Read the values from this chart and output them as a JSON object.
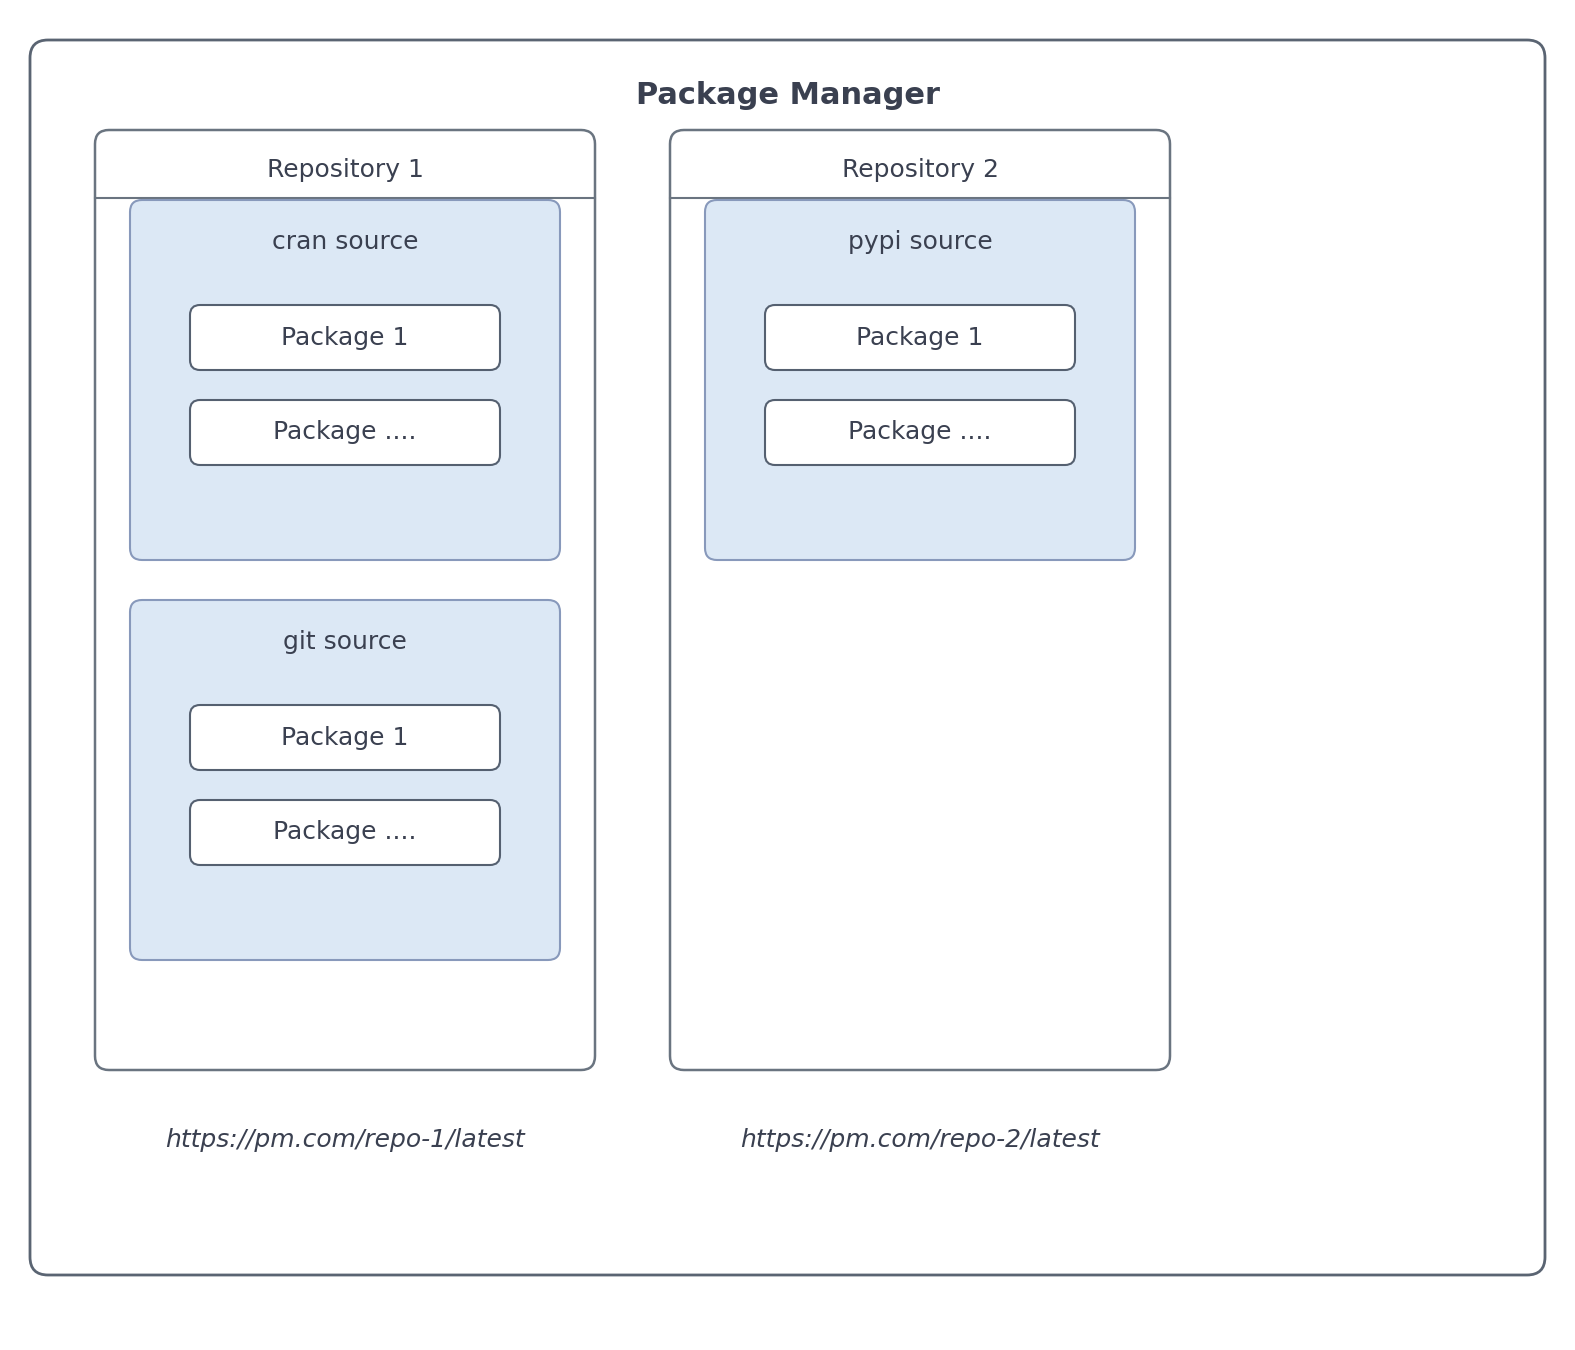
{
  "title": "Package Manager",
  "title_fontsize": 22,
  "title_fontweight": "bold",
  "bg_color": "#ffffff",
  "outer_box_edgecolor": "#5a6472",
  "outer_box_bg": "#ffffff",
  "repo_box_edgecolor": "#6a7480",
  "repo_box_bg": "#ffffff",
  "source_box_edgecolor": "#8899bb",
  "source_box_bg": "#dce8f5",
  "package_box_edgecolor": "#556070",
  "package_box_bg": "#ffffff",
  "text_color": "#3a4050",
  "url_color": "#3a4050",
  "repo1_title": "Repository 1",
  "repo2_title": "Repository 2",
  "source1_title": "cran source",
  "source2_title": "pypi source",
  "source3_title": "git source",
  "packages": [
    "Package 1",
    "Package ...."
  ],
  "url1": "https://pm.com/repo-1/latest",
  "url2": "https://pm.com/repo-2/latest",
  "repo_label_fontsize": 18,
  "source_label_fontsize": 18,
  "package_fontsize": 18,
  "url_fontsize": 18
}
